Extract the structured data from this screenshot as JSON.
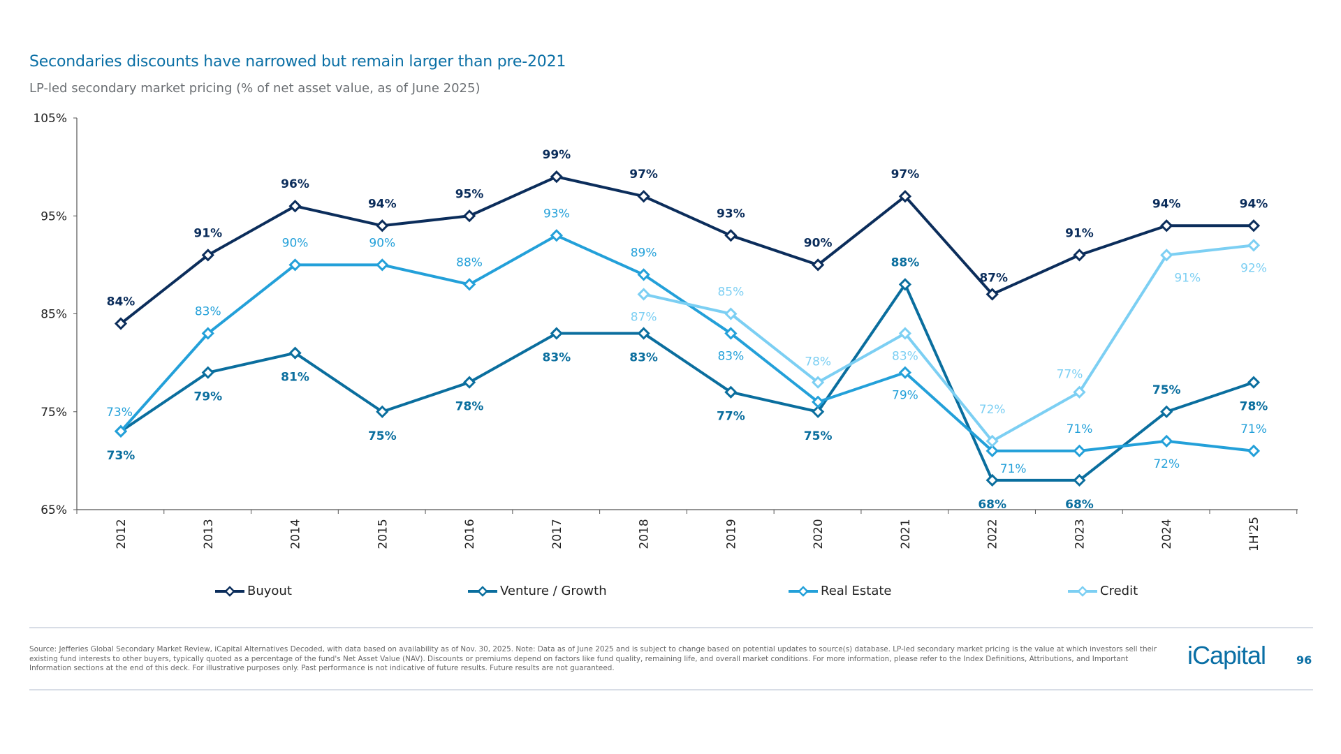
{
  "header": {
    "title": "Secondaries discounts have narrowed but remain larger than pre-2021",
    "subtitle": "LP-led secondary market pricing (% of net asset value, as of June 2025)"
  },
  "chart_data": {
    "type": "line",
    "title": "",
    "xlabel": "",
    "ylabel": "",
    "categories": [
      "2012",
      "2013",
      "2014",
      "2015",
      "2016",
      "2017",
      "2018",
      "2019",
      "2020",
      "2021",
      "2022",
      "2023",
      "2024",
      "1H'25"
    ],
    "ylim": [
      65,
      105
    ],
    "yticks": [
      65,
      75,
      85,
      95,
      105
    ],
    "ytick_labels": [
      "65%",
      "75%",
      "85%",
      "95%",
      "105%"
    ],
    "grid": false,
    "legend_position": "bottom",
    "series": [
      {
        "name": "Buyout",
        "color": "#0b2d5b",
        "values": [
          84,
          91,
          96,
          94,
          95,
          99,
          97,
          93,
          90,
          97,
          87,
          91,
          94,
          94
        ],
        "labels": [
          "84%",
          "91%",
          "96%",
          "94%",
          "95%",
          "99%",
          "97%",
          "93%",
          "90%",
          "97%",
          "87%",
          "91%",
          "94%",
          "94%"
        ]
      },
      {
        "name": "Venture / Growth",
        "color": "#0a6e9e",
        "values": [
          73,
          79,
          81,
          75,
          78,
          83,
          83,
          77,
          75,
          88,
          68,
          68,
          75,
          78
        ],
        "labels": [
          "73%",
          "79%",
          "81%",
          "75%",
          "78%",
          "83%",
          "83%",
          "77%",
          "75%",
          "88%",
          "68%",
          "68%",
          "75%",
          "78%"
        ]
      },
      {
        "name": "Real Estate",
        "color": "#23a0d9",
        "values": [
          73,
          83,
          90,
          90,
          88,
          93,
          89,
          83,
          76,
          79,
          71,
          71,
          72,
          71
        ],
        "labels": [
          "73%",
          "83%",
          "90%",
          "90%",
          "88%",
          "93%",
          "89%",
          "83%",
          null,
          "79%",
          "71%",
          "71%",
          "72%",
          "71%"
        ]
      },
      {
        "name": "Credit",
        "color": "#7ccff3",
        "values": [
          null,
          null,
          null,
          null,
          null,
          null,
          87,
          85,
          78,
          83,
          72,
          77,
          91,
          92
        ],
        "labels": [
          null,
          null,
          null,
          null,
          null,
          null,
          "87%",
          "85%",
          "78%",
          "83%",
          "72%",
          "77%",
          "91%",
          "92%"
        ]
      }
    ]
  },
  "footer": {
    "note": "Source: Jefferies Global Secondary Market Review, iCapital Alternatives Decoded, with data based on availability as of Nov. 30, 2025. Note: Data as of June 2025 and is subject to change based on potential updates to source(s) database. LP-led secondary market pricing is the value at which investors sell their existing fund interests to other buyers, typically quoted as a percentage of the fund's Net Asset Value (NAV). Discounts or premiums depend on factors like fund quality, remaining life, and overall market conditions. For more information, please refer to the Index Definitions, Attributions, and Important Information sections at the end of this deck. For illustrative purposes only. Past performance is not indicative of future results. Future results are not guaranteed.",
    "logo": "iCapital",
    "page_number": "96"
  }
}
